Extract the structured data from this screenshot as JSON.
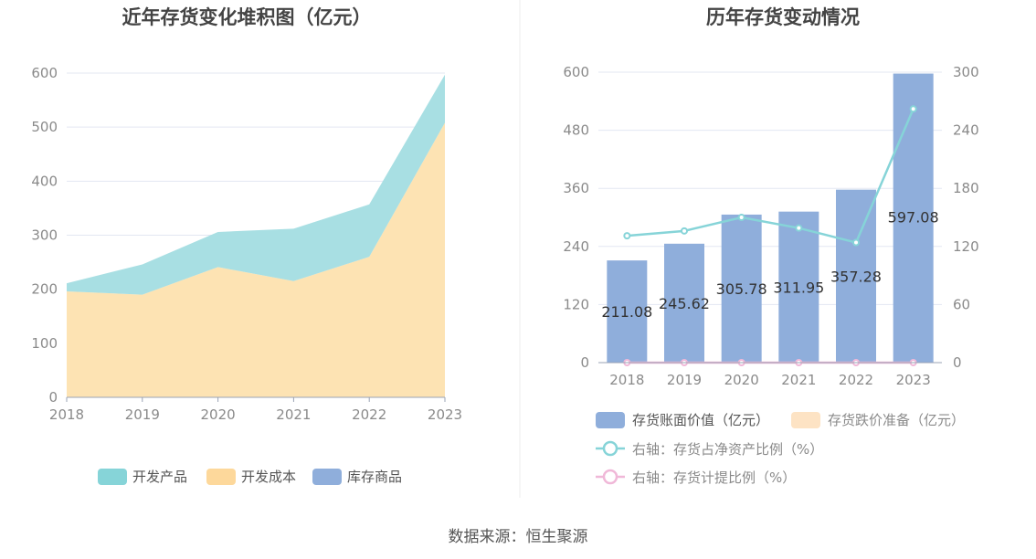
{
  "source_text": "数据来源：恒生聚源",
  "chart_data": [
    {
      "type": "area",
      "title": "近年存货变化堆积图（亿元）",
      "x": [
        "2018",
        "2019",
        "2020",
        "2021",
        "2022",
        "2023"
      ],
      "ylim": [
        0,
        600
      ],
      "yticks": [
        "0",
        "100",
        "200",
        "300",
        "400",
        "500",
        "600"
      ],
      "series": [
        {
          "name": "开发成本",
          "color": "#fde3b3",
          "values": [
            196,
            190,
            241,
            215,
            260,
            508
          ]
        },
        {
          "name": "开发产品",
          "color": "#a8dfe3",
          "values": [
            15,
            56,
            65,
            97,
            97,
            89
          ]
        },
        {
          "name": "库存商品",
          "color": "#8faedb",
          "values": [
            0,
            0,
            0,
            0,
            0,
            0
          ]
        }
      ],
      "legend": [
        {
          "name": "开发产品",
          "color": "#86d4d8"
        },
        {
          "name": "开发成本",
          "color": "#fdd89b"
        },
        {
          "name": "库存商品",
          "color": "#8faedb"
        }
      ],
      "legend_position": "bottom",
      "grid": true
    },
    {
      "type": "bar",
      "title": "历年存货变动情况",
      "categories": [
        "2018",
        "2019",
        "2020",
        "2021",
        "2022",
        "2023"
      ],
      "ylim_left": [
        0,
        600
      ],
      "yticks_left": [
        "0",
        "120",
        "240",
        "360",
        "480",
        "600"
      ],
      "ylim_right": [
        0,
        300
      ],
      "yticks_right": [
        "0",
        "60",
        "120",
        "180",
        "240",
        "300"
      ],
      "series": [
        {
          "name": "存货账面价值（亿元）",
          "type": "bar",
          "axis": "left",
          "color": "#8faedb",
          "values": [
            211.08,
            245.62,
            305.78,
            311.95,
            357.28,
            597.08
          ],
          "labels": [
            "211.08",
            "245.62",
            "305.78",
            "311.95",
            "357.28",
            "597.08"
          ]
        },
        {
          "name": "存货跌价准备（亿元）",
          "type": "bar",
          "axis": "left",
          "color": "#fde3c4",
          "values": [
            0,
            0,
            0,
            0,
            0,
            0
          ]
        },
        {
          "name": "右轴：存货占净资产比例（%）",
          "type": "line",
          "axis": "right",
          "color": "#86d4d8",
          "values": [
            131,
            136,
            150,
            139,
            124,
            262
          ]
        },
        {
          "name": "右轴：存货计提比例（%）",
          "type": "line",
          "axis": "right",
          "color": "#f0b8d8",
          "values": [
            0,
            0,
            0,
            0,
            0,
            0
          ]
        }
      ],
      "legend_position": "bottom",
      "grid": true
    }
  ]
}
